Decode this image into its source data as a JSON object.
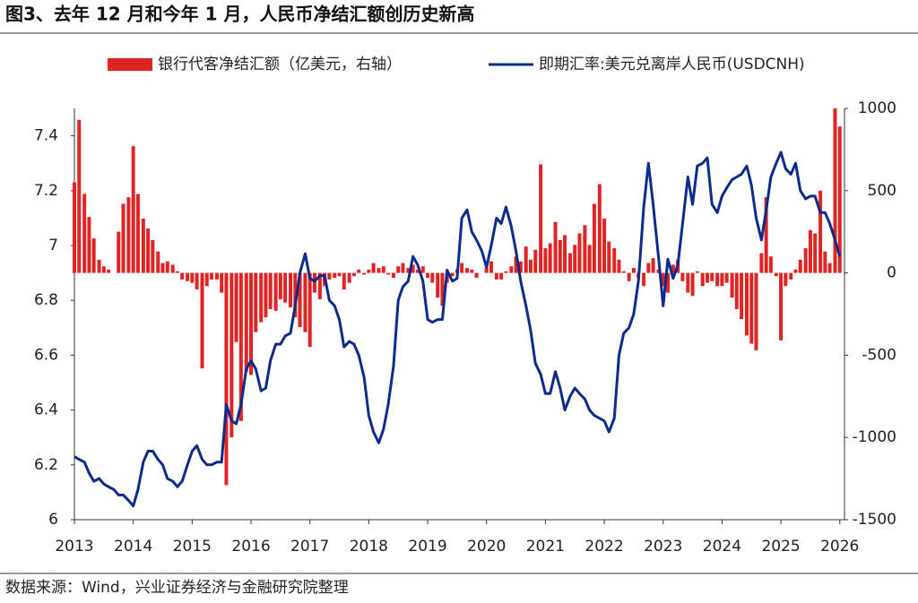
{
  "chart_data": {
    "type": "combo",
    "title": "图3、去年 12 月和今年 1 月，人民币净结汇额创历史新高",
    "source": "数据来源：Wind，兴业证券经济与金融研究院整理",
    "x": [
      2013,
      2013.08,
      2013.17,
      2013.25,
      2013.33,
      2013.42,
      2013.5,
      2013.58,
      2013.67,
      2013.75,
      2013.83,
      2013.92,
      2014,
      2014.08,
      2014.17,
      2014.25,
      2014.33,
      2014.42,
      2014.5,
      2014.58,
      2014.67,
      2014.75,
      2014.83,
      2014.92,
      2015,
      2015.08,
      2015.17,
      2015.25,
      2015.33,
      2015.42,
      2015.5,
      2015.58,
      2015.67,
      2015.75,
      2015.83,
      2015.92,
      2016,
      2016.08,
      2016.17,
      2016.25,
      2016.33,
      2016.42,
      2016.5,
      2016.58,
      2016.67,
      2016.75,
      2016.83,
      2016.92,
      2017,
      2017.08,
      2017.17,
      2017.25,
      2017.33,
      2017.42,
      2017.5,
      2017.58,
      2017.67,
      2017.75,
      2017.83,
      2017.92,
      2018,
      2018.08,
      2018.17,
      2018.25,
      2018.33,
      2018.42,
      2018.5,
      2018.58,
      2018.67,
      2018.75,
      2018.83,
      2018.92,
      2019,
      2019.08,
      2019.17,
      2019.25,
      2019.33,
      2019.42,
      2019.5,
      2019.58,
      2019.67,
      2019.75,
      2019.83,
      2019.92,
      2020,
      2020.08,
      2020.17,
      2020.25,
      2020.33,
      2020.42,
      2020.5,
      2020.58,
      2020.67,
      2020.75,
      2020.83,
      2020.92,
      2021,
      2021.08,
      2021.17,
      2021.25,
      2021.33,
      2021.42,
      2021.5,
      2021.58,
      2021.67,
      2021.75,
      2021.83,
      2021.92,
      2022,
      2022.08,
      2022.17,
      2022.25,
      2022.33,
      2022.42,
      2022.5,
      2022.58,
      2022.67,
      2022.75,
      2022.83,
      2022.92,
      2023,
      2023.08,
      2023.17,
      2023.25,
      2023.33,
      2023.42,
      2023.5,
      2023.58,
      2023.67,
      2023.75,
      2023.83,
      2023.92,
      2024,
      2024.08,
      2024.17,
      2024.25,
      2024.33,
      2024.42,
      2024.5,
      2024.58,
      2024.67,
      2024.75,
      2024.83,
      2024.92,
      2025,
      2025.08,
      2025.17,
      2025.25,
      2025.33,
      2025.42,
      2025.5,
      2025.58,
      2025.67,
      2025.75,
      2025.83,
      2025.92,
      2026
    ],
    "series": [
      {
        "name": "银行代客净结汇额（亿美元，右轴）",
        "type": "bar",
        "axis": "y2",
        "color": "#e02424",
        "values": [
          550,
          930,
          480,
          340,
          210,
          80,
          40,
          20,
          0,
          250,
          420,
          460,
          770,
          480,
          330,
          270,
          200,
          130,
          60,
          70,
          50,
          10,
          -40,
          -50,
          -60,
          -100,
          -580,
          -80,
          -40,
          -40,
          -120,
          -1290,
          -1000,
          -420,
          -900,
          -600,
          -620,
          -360,
          -300,
          -270,
          -220,
          -230,
          -160,
          -180,
          -210,
          -270,
          -330,
          -360,
          -450,
          -120,
          -160,
          -80,
          -40,
          -30,
          -20,
          -100,
          -60,
          -20,
          20,
          -10,
          20,
          60,
          30,
          40,
          -10,
          -30,
          40,
          60,
          30,
          50,
          20,
          40,
          -30,
          -60,
          -150,
          -200,
          -60,
          -20,
          20,
          60,
          30,
          20,
          -30,
          0,
          30,
          70,
          -40,
          -40,
          10,
          40,
          100,
          70,
          160,
          80,
          140,
          660,
          150,
          180,
          310,
          200,
          230,
          120,
          170,
          240,
          290,
          170,
          420,
          540,
          330,
          190,
          150,
          80,
          10,
          -50,
          30,
          -30,
          -80,
          60,
          90,
          20,
          -80,
          -120,
          50,
          80,
          -50,
          -120,
          -140,
          10,
          -80,
          -60,
          -50,
          -80,
          -80,
          -60,
          -150,
          -220,
          -280,
          -380,
          -430,
          -470,
          120,
          460,
          100,
          -20,
          -410,
          -80,
          -40,
          20,
          80,
          150,
          260,
          240,
          500,
          130,
          60,
          1000,
          890
        ]
      },
      {
        "name": "即期汇率:美元兑离岸人民币(USDCNH)",
        "type": "line",
        "axis": "y",
        "color": "#0d2b8c",
        "values": [
          6.23,
          6.22,
          6.21,
          6.17,
          6.14,
          6.15,
          6.13,
          6.12,
          6.11,
          6.09,
          6.09,
          6.07,
          6.05,
          6.11,
          6.21,
          6.25,
          6.25,
          6.22,
          6.2,
          6.15,
          6.14,
          6.12,
          6.14,
          6.2,
          6.25,
          6.27,
          6.22,
          6.2,
          6.2,
          6.21,
          6.21,
          6.42,
          6.36,
          6.35,
          6.42,
          6.55,
          6.58,
          6.55,
          6.47,
          6.48,
          6.58,
          6.64,
          6.64,
          6.67,
          6.68,
          6.78,
          6.9,
          6.97,
          6.88,
          6.87,
          6.89,
          6.89,
          6.8,
          6.78,
          6.73,
          6.63,
          6.65,
          6.64,
          6.6,
          6.52,
          6.38,
          6.32,
          6.28,
          6.33,
          6.42,
          6.56,
          6.8,
          6.85,
          6.87,
          6.96,
          6.93,
          6.87,
          6.73,
          6.72,
          6.73,
          6.73,
          6.91,
          6.87,
          6.88,
          7.1,
          7.13,
          7.05,
          7.02,
          6.98,
          6.92,
          7.0,
          7.1,
          7.08,
          7.14,
          7.07,
          6.98,
          6.87,
          6.78,
          6.69,
          6.57,
          6.53,
          6.46,
          6.46,
          6.54,
          6.48,
          6.4,
          6.45,
          6.48,
          6.46,
          6.44,
          6.4,
          6.38,
          6.37,
          6.36,
          6.32,
          6.37,
          6.6,
          6.68,
          6.7,
          6.75,
          6.87,
          7.14,
          7.3,
          7.15,
          6.96,
          6.78,
          6.95,
          6.88,
          6.93,
          7.08,
          7.25,
          7.15,
          7.29,
          7.3,
          7.32,
          7.15,
          7.12,
          7.18,
          7.21,
          7.24,
          7.25,
          7.26,
          7.29,
          7.22,
          7.1,
          7.02,
          7.13,
          7.25,
          7.3,
          7.34,
          7.28,
          7.26,
          7.3,
          7.2,
          7.17,
          7.18,
          7.18,
          7.12,
          7.12,
          7.08,
          7.02,
          6.96
        ]
      }
    ],
    "xlim": [
      2013,
      2026.08
    ],
    "xticks": [
      2013,
      2014,
      2015,
      2016,
      2017,
      2018,
      2019,
      2020,
      2021,
      2022,
      2023,
      2024,
      2025,
      2026
    ],
    "ylim": [
      6,
      7.5
    ],
    "yticks": [
      6,
      6.2,
      6.4,
      6.6,
      6.8,
      7,
      7.2,
      7.4
    ],
    "y2lim": [
      -1500,
      1000
    ],
    "y2ticks": [
      -1500,
      -1000,
      -500,
      0,
      500,
      1000
    ],
    "grid": false,
    "legend": "top"
  }
}
